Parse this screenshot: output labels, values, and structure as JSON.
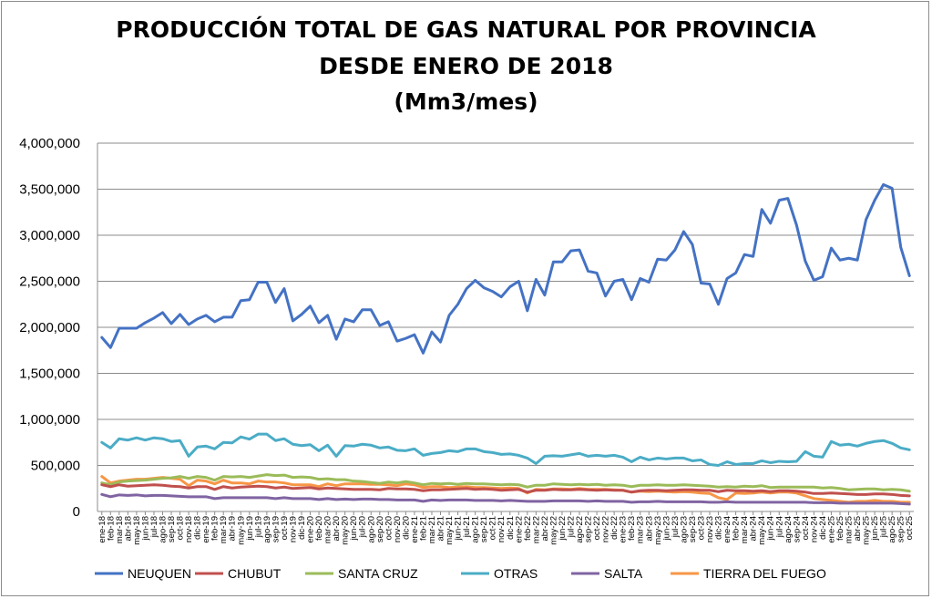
{
  "chart_data": {
    "type": "line",
    "title_lines": [
      "PRODUCCIÓN TOTAL DE GAS NATURAL POR PROVINCIA",
      "DESDE ENERO DE 2018",
      "(Mm3/mes)"
    ],
    "ylim": [
      0,
      4000000
    ],
    "yticks": [
      "0",
      "500,000",
      "1,000,000",
      "1,500,000",
      "2,000,000",
      "2,500,000",
      "3,000,000",
      "3,500,000",
      "4,000,000"
    ],
    "grid": true,
    "legend_position": "bottom",
    "categories": [
      "ene-18",
      "feb-18",
      "mar-18",
      "abr-18",
      "may-18",
      "jun-18",
      "jul-18",
      "ago-18",
      "sep-18",
      "oct-18",
      "nov-18",
      "dic-18",
      "ene-19",
      "feb-19",
      "mar-19",
      "abr-19",
      "may-19",
      "jun-19",
      "jul-19",
      "ago-19",
      "sep-19",
      "oct-19",
      "nov-19",
      "dic-19",
      "ene-20",
      "feb-20",
      "mar-20",
      "abr-20",
      "may-20",
      "jun-20",
      "jul-20",
      "ago-20",
      "sep-20",
      "oct-20",
      "nov-20",
      "dic-20",
      "ene-21",
      "feb-21",
      "mar-21",
      "abr-21",
      "may-21",
      "jun-21",
      "jul-21",
      "ago-21",
      "sep-21",
      "oct-21",
      "nov-21",
      "dic-21",
      "ene-22",
      "feb-22",
      "mar-22",
      "abr-22",
      "may-22",
      "jun-22",
      "jul-22",
      "ago-22",
      "sep-22",
      "oct-22",
      "nov-22",
      "dic-22",
      "ene-23",
      "feb-23",
      "mar-23",
      "abr-23",
      "may-23",
      "jun-23",
      "jul-23",
      "ago-23",
      "sep-23",
      "oct-23",
      "nov-23",
      "dic-23",
      "ene-24",
      "feb-24",
      "mar-24",
      "abr-24",
      "may-24",
      "jun-24",
      "jul-24",
      "ago-24",
      "sep-24",
      "oct-24",
      "nov-24",
      "dic-24",
      "ene-25",
      "feb-25",
      "mar-25",
      "abr-25",
      "may-25",
      "jun-25",
      "jul-25",
      "ago-25",
      "sep-25",
      "oct-25"
    ],
    "series": [
      {
        "name": "NEUQUEN",
        "color": "#4472c4",
        "values": [
          1890000,
          1780000,
          1990000,
          1990000,
          1990000,
          2050000,
          2100000,
          2160000,
          2040000,
          2140000,
          2030000,
          2090000,
          2130000,
          2060000,
          2110000,
          2110000,
          2290000,
          2300000,
          2490000,
          2490000,
          2270000,
          2420000,
          2070000,
          2140000,
          2230000,
          2050000,
          2130000,
          1870000,
          2090000,
          2060000,
          2190000,
          2190000,
          2020000,
          2060000,
          1850000,
          1880000,
          1920000,
          1720000,
          1950000,
          1840000,
          2130000,
          2250000,
          2420000,
          2510000,
          2430000,
          2390000,
          2330000,
          2440000,
          2500000,
          2180000,
          2520000,
          2350000,
          2710000,
          2710000,
          2830000,
          2840000,
          2610000,
          2590000,
          2340000,
          2500000,
          2520000,
          2300000,
          2530000,
          2490000,
          2740000,
          2730000,
          2840000,
          3040000,
          2900000,
          2480000,
          2470000,
          2250000,
          2530000,
          2590000,
          2790000,
          2770000,
          3280000,
          3130000,
          3380000,
          3400000,
          3110000,
          2720000,
          2510000,
          2550000,
          2860000,
          2730000,
          2750000,
          2730000,
          3170000,
          3380000,
          3550000,
          3510000,
          2870000,
          2560000
        ]
      },
      {
        "name": "CHUBUT",
        "color": "#c0504d",
        "values": [
          290000,
          270000,
          290000,
          275000,
          280000,
          285000,
          290000,
          285000,
          275000,
          270000,
          255000,
          270000,
          270000,
          240000,
          270000,
          255000,
          265000,
          270000,
          275000,
          270000,
          255000,
          265000,
          250000,
          255000,
          260000,
          245000,
          255000,
          250000,
          245000,
          240000,
          240000,
          240000,
          235000,
          250000,
          245000,
          245000,
          240000,
          225000,
          235000,
          235000,
          240000,
          245000,
          250000,
          240000,
          245000,
          240000,
          230000,
          235000,
          240000,
          210000,
          230000,
          230000,
          240000,
          235000,
          235000,
          240000,
          235000,
          230000,
          235000,
          230000,
          230000,
          210000,
          225000,
          230000,
          230000,
          225000,
          230000,
          235000,
          235000,
          230000,
          230000,
          215000,
          230000,
          225000,
          225000,
          220000,
          225000,
          215000,
          225000,
          225000,
          220000,
          210000,
          195000,
          195000,
          200000,
          195000,
          190000,
          185000,
          185000,
          190000,
          190000,
          185000,
          175000,
          170000
        ]
      },
      {
        "name": "SANTA CRUZ",
        "color": "#9bbb59",
        "values": [
          310000,
          290000,
          320000,
          330000,
          335000,
          340000,
          350000,
          360000,
          365000,
          380000,
          360000,
          380000,
          370000,
          340000,
          380000,
          375000,
          380000,
          370000,
          385000,
          400000,
          390000,
          395000,
          370000,
          375000,
          370000,
          350000,
          355000,
          345000,
          345000,
          330000,
          325000,
          315000,
          305000,
          320000,
          310000,
          325000,
          310000,
          290000,
          305000,
          300000,
          305000,
          295000,
          305000,
          300000,
          300000,
          295000,
          290000,
          295000,
          290000,
          265000,
          285000,
          285000,
          300000,
          295000,
          290000,
          295000,
          290000,
          295000,
          285000,
          290000,
          285000,
          270000,
          285000,
          285000,
          290000,
          285000,
          285000,
          290000,
          285000,
          280000,
          275000,
          265000,
          270000,
          265000,
          275000,
          270000,
          280000,
          260000,
          265000,
          265000,
          265000,
          265000,
          265000,
          255000,
          260000,
          250000,
          235000,
          240000,
          245000,
          245000,
          235000,
          240000,
          235000,
          220000
        ]
      },
      {
        "name": "OTRAS",
        "color": "#4bacc6",
        "values": [
          750000,
          690000,
          790000,
          775000,
          800000,
          775000,
          800000,
          790000,
          760000,
          770000,
          600000,
          700000,
          710000,
          680000,
          750000,
          745000,
          810000,
          785000,
          840000,
          840000,
          770000,
          790000,
          730000,
          715000,
          725000,
          660000,
          720000,
          600000,
          715000,
          710000,
          730000,
          720000,
          690000,
          700000,
          665000,
          660000,
          680000,
          610000,
          630000,
          640000,
          660000,
          650000,
          680000,
          680000,
          650000,
          640000,
          620000,
          625000,
          610000,
          580000,
          520000,
          600000,
          605000,
          600000,
          615000,
          630000,
          600000,
          610000,
          600000,
          610000,
          590000,
          540000,
          590000,
          560000,
          580000,
          570000,
          580000,
          580000,
          550000,
          560000,
          510000,
          500000,
          540000,
          510000,
          520000,
          520000,
          550000,
          530000,
          545000,
          540000,
          545000,
          650000,
          600000,
          590000,
          760000,
          720000,
          730000,
          710000,
          740000,
          760000,
          770000,
          740000,
          690000,
          670000
        ]
      },
      {
        "name": "SALTA",
        "color": "#8064a2",
        "values": [
          185000,
          160000,
          180000,
          175000,
          180000,
          170000,
          175000,
          175000,
          170000,
          165000,
          160000,
          160000,
          160000,
          140000,
          150000,
          150000,
          150000,
          150000,
          150000,
          150000,
          140000,
          150000,
          140000,
          140000,
          140000,
          130000,
          140000,
          130000,
          135000,
          130000,
          135000,
          135000,
          130000,
          130000,
          125000,
          125000,
          125000,
          110000,
          125000,
          120000,
          125000,
          125000,
          125000,
          120000,
          120000,
          120000,
          115000,
          120000,
          115000,
          110000,
          110000,
          110000,
          115000,
          115000,
          115000,
          115000,
          110000,
          115000,
          110000,
          110000,
          110000,
          100000,
          105000,
          105000,
          110000,
          105000,
          105000,
          105000,
          105000,
          105000,
          100000,
          100000,
          105000,
          100000,
          100000,
          100000,
          100000,
          100000,
          100000,
          100000,
          100000,
          100000,
          95000,
          95000,
          95000,
          90000,
          90000,
          90000,
          90000,
          90000,
          90000,
          90000,
          85000,
          80000
        ]
      },
      {
        "name": "TIERRA DEL FUEGO",
        "color": "#f79646",
        "values": [
          380000,
          310000,
          330000,
          340000,
          350000,
          350000,
          360000,
          370000,
          360000,
          350000,
          280000,
          340000,
          330000,
          300000,
          340000,
          310000,
          310000,
          300000,
          330000,
          320000,
          320000,
          310000,
          290000,
          290000,
          290000,
          270000,
          300000,
          280000,
          300000,
          300000,
          300000,
          295000,
          295000,
          290000,
          280000,
          300000,
          290000,
          260000,
          270000,
          270000,
          260000,
          265000,
          270000,
          260000,
          260000,
          255000,
          250000,
          255000,
          250000,
          200000,
          240000,
          235000,
          245000,
          245000,
          240000,
          250000,
          240000,
          240000,
          240000,
          235000,
          230000,
          210000,
          220000,
          215000,
          220000,
          215000,
          210000,
          215000,
          210000,
          200000,
          195000,
          150000,
          130000,
          200000,
          195000,
          200000,
          210000,
          200000,
          210000,
          210000,
          200000,
          170000,
          140000,
          130000,
          120000,
          110000,
          100000,
          110000,
          110000,
          120000,
          110000,
          110000,
          100000,
          100000
        ]
      }
    ]
  }
}
